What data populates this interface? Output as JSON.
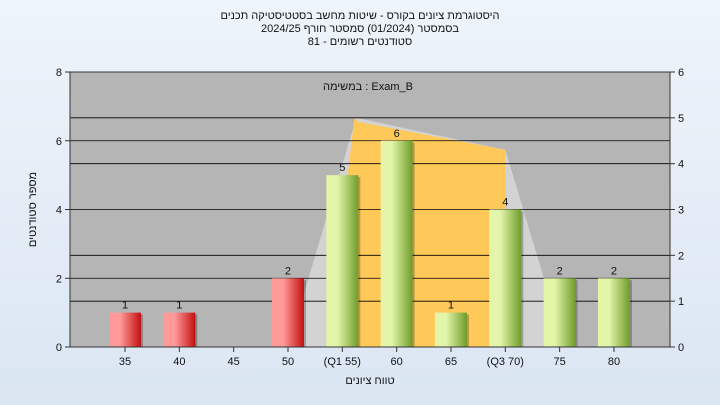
{
  "chart_data": {
    "type": "bar",
    "title": "היסטוגרמת ציונים בקורס - שיטות מחשב בסטטיסטיקה תכנים",
    "subtitle": "בסמסטר  (01/2024)  סמסטר חורף 2024/25",
    "subtitle2": "סטודנטים רשומים - 81",
    "annotation": "במשימה : Exam_B",
    "xlabel": "טווח ציונים",
    "ylabel": "מספר סטודנטים",
    "categories": [
      "35",
      "40",
      "45",
      "50",
      "(Q1 55)",
      "60",
      "65",
      "(Q3 70)",
      "75",
      "80"
    ],
    "values": [
      1,
      1,
      0,
      2,
      5,
      6,
      1,
      4,
      2,
      2
    ],
    "data_labels": [
      "1",
      "1",
      "",
      "2",
      "5",
      "6",
      "1",
      "4",
      "2",
      "2"
    ],
    "bar_groups": [
      "low",
      "low",
      "low",
      "low",
      "pass",
      "pass",
      "pass",
      "pass",
      "pass",
      "pass"
    ],
    "ylim": [
      0,
      8
    ],
    "yticks": [
      "0",
      "2",
      "4",
      "6",
      "8"
    ],
    "y2lim": [
      0,
      6
    ],
    "y2ticks": [
      "0",
      "1",
      "2",
      "3",
      "4",
      "5",
      "6"
    ],
    "distribution_curve": {
      "x_start": "50",
      "x_q1": "(Q1 55)",
      "x_q3": "(Q3 70)",
      "x_end": "75",
      "peak_value_right_axis": 5,
      "plateau_value_right_axis": 4.3
    },
    "grid": true,
    "colors": {
      "plot_background": "#b5b5b5",
      "gridline": "#000000",
      "curve_fill": "#ffc95a",
      "curve_shadow": "#d3d3d3",
      "low_bar_light": "#ff9a9a",
      "low_bar_dark": "#c40f0f",
      "pass_bar_light": "#e2f5a8",
      "pass_bar_dark": "#6f9c2b"
    }
  }
}
